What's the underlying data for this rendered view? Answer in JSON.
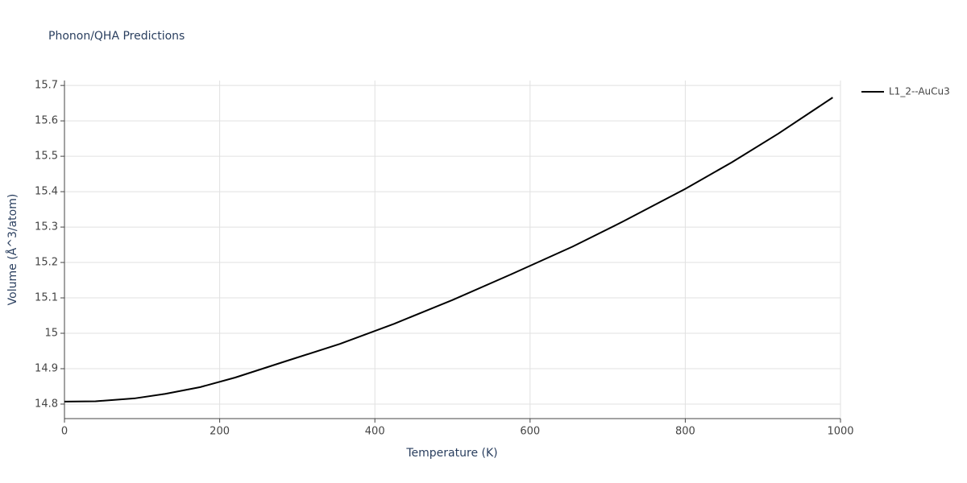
{
  "chart_data": {
    "type": "line",
    "title": "Phonon/QHA Predictions",
    "x_label": "Temperature (K)",
    "y_label": "Volume (Å^3/atom)",
    "x": [
      0,
      40,
      90,
      130,
      175,
      220,
      285,
      355,
      425,
      500,
      575,
      655,
      720,
      800,
      860,
      920,
      990
    ],
    "series": [
      {
        "name": "L1_2--AuCu3",
        "color": "#000000",
        "values": [
          14.807,
          14.808,
          14.816,
          14.829,
          14.848,
          14.875,
          14.921,
          14.97,
          15.027,
          15.094,
          15.166,
          15.245,
          15.316,
          15.408,
          15.483,
          15.564,
          15.666
        ]
      }
    ],
    "xlim": [
      0,
      1000
    ],
    "xticks": [
      0,
      200,
      400,
      600,
      800,
      1000
    ],
    "ylim": [
      14.759,
      15.714
    ],
    "yticks": [
      14.8,
      14.9,
      15,
      15.1,
      15.2,
      15.3,
      15.4,
      15.5,
      15.6,
      15.7
    ],
    "grid": true,
    "legend": "right"
  }
}
